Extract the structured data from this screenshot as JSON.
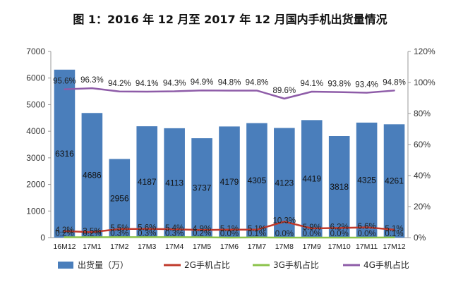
{
  "chart_data": {
    "type": "bar",
    "title": "图 1：2016 年 12 月至 2017 年 12 月国内手机出货量情况",
    "categories": [
      "16M12",
      "17M1",
      "17M2",
      "17M3",
      "17M4",
      "17M5",
      "17M6",
      "17M7",
      "17M8",
      "17M9",
      "17M10",
      "17M11",
      "17M12"
    ],
    "left_axis": {
      "min": 0,
      "max": 7000,
      "step": 1000,
      "ticks": [
        "0",
        "1000",
        "2000",
        "3000",
        "4000",
        "5000",
        "6000",
        "7000"
      ]
    },
    "right_axis": {
      "min": 0,
      "max": 120,
      "step": 20,
      "ticks": [
        "0%",
        "20%",
        "40%",
        "60%",
        "80%",
        "100%",
        "120%"
      ]
    },
    "grid": false,
    "legend_position": "bottom",
    "series": [
      {
        "name": "出货量（万）",
        "kind": "bar",
        "axis": "left",
        "color": "#4a7ebb",
        "values": [
          6316,
          4686,
          2956,
          4187,
          4113,
          3737,
          4179,
          4305,
          4123,
          4419,
          3818,
          4325,
          4261
        ],
        "labels": [
          "6316",
          "4686",
          "2956",
          "4187",
          "4113",
          "3737",
          "4179",
          "4305",
          "4123",
          "4419",
          "3818",
          "4325",
          "4261"
        ]
      },
      {
        "name": "2G手机占比",
        "kind": "line",
        "axis": "right",
        "color": "#c0392b",
        "values": [
          4.2,
          3.5,
          5.5,
          5.6,
          5.4,
          4.9,
          5.1,
          5.1,
          10.3,
          5.9,
          6.2,
          6.6,
          5.1
        ],
        "labels": [
          "4.2%",
          "3.5%",
          "5.5%",
          "5.6%",
          "5.4%",
          "4.9%",
          "5.1%",
          "5.1%",
          "10.3%",
          "5.9%",
          "6.2%",
          "6.6%",
          "5.1%"
        ]
      },
      {
        "name": "3G手机占比",
        "kind": "line",
        "axis": "right",
        "color": "#8bc34a",
        "values": [
          0.2,
          0.2,
          0.3,
          0.3,
          0.3,
          0.2,
          0.0,
          0.1,
          0.0,
          0.0,
          0.0,
          0.0,
          0.1
        ],
        "labels": [
          "0.2%",
          "0.2%",
          "0.3%",
          "0.3%",
          "0.3%",
          "0.2%",
          "0.0%",
          "0.1%",
          "0.0%",
          "0.0%",
          "0.0%",
          "0.0%",
          "0.1%"
        ]
      },
      {
        "name": "4G手机占比",
        "kind": "line",
        "axis": "right",
        "color": "#8e5ca8",
        "values": [
          95.6,
          96.3,
          94.2,
          94.1,
          94.3,
          94.9,
          94.8,
          94.8,
          89.6,
          94.1,
          93.8,
          93.4,
          94.8
        ],
        "labels": [
          "95.6%",
          "96.3%",
          "94.2%",
          "94.1%",
          "94.3%",
          "94.9%",
          "94.8%",
          "94.8%",
          "89.6%",
          "94.1%",
          "93.8%",
          "93.4%",
          "94.8%"
        ]
      }
    ]
  }
}
